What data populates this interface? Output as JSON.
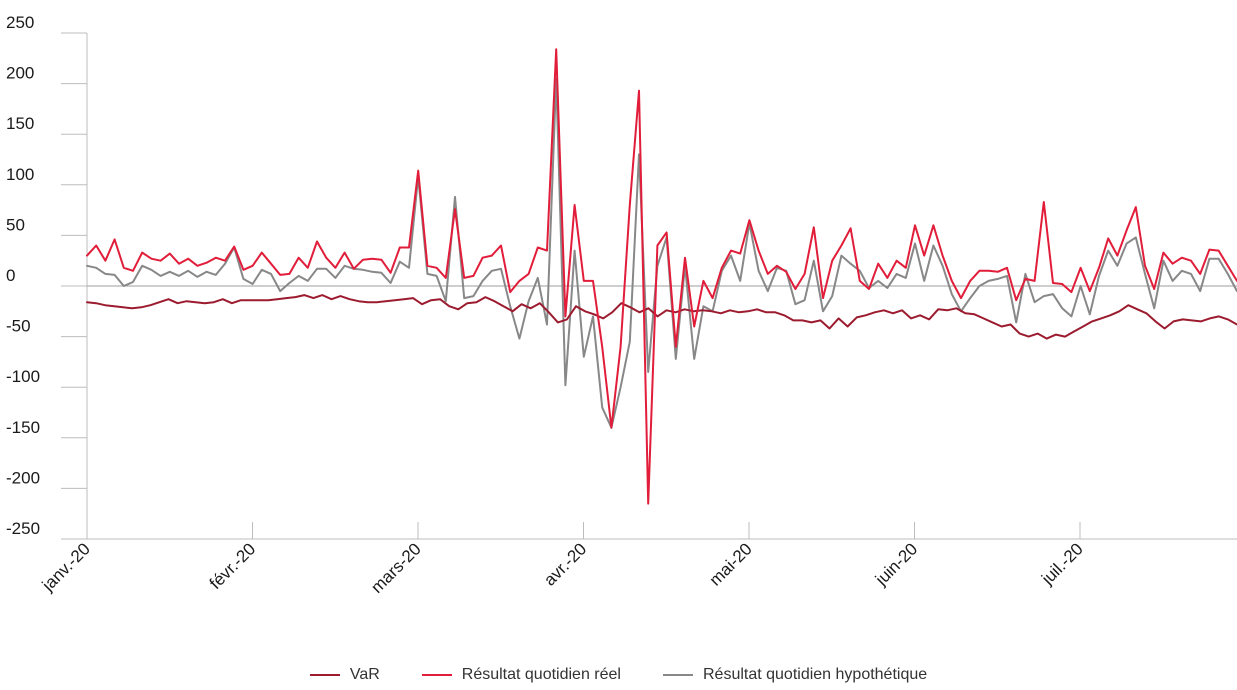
{
  "chart_data": {
    "type": "line",
    "title": "",
    "xlabel": "",
    "ylabel": "",
    "ylim": [
      -250,
      250
    ],
    "yticks": [
      250,
      200,
      150,
      100,
      50,
      0,
      -50,
      -100,
      -150,
      -200,
      -250
    ],
    "xticks": [
      "janv.-20",
      "févr.-20",
      "mars-20",
      "avr.-20",
      "mai-20",
      "juin-20",
      "juil.-20"
    ],
    "grid": false,
    "zero_line": true,
    "legend_position": "bottom-center",
    "series": [
      {
        "name": "VaR",
        "color": "#9c1b2f",
        "values": [
          -16,
          -17,
          -19,
          -20,
          -21,
          -22,
          -21,
          -19,
          -16,
          -13,
          -17,
          -15,
          -16,
          -17,
          -16,
          -13,
          -17,
          -14,
          -14,
          -14,
          -14,
          -13,
          -12,
          -11,
          -9,
          -12,
          -9,
          -13,
          -10,
          -13,
          -15,
          -16,
          -16,
          -15,
          -14,
          -13,
          -12,
          -18,
          -14,
          -13,
          -20,
          -23,
          -17,
          -16,
          -11,
          -15,
          -20,
          -25,
          -18,
          -22,
          -17,
          -26,
          -36,
          -33,
          -20,
          -25,
          -28,
          -32,
          -26,
          -17,
          -21,
          -26,
          -22,
          -30,
          -24,
          -26,
          -23,
          -25,
          -24,
          -25,
          -27,
          -24,
          -26,
          -25,
          -23,
          -26,
          -26,
          -29,
          -34,
          -34,
          -36,
          -34,
          -42,
          -32,
          -40,
          -31,
          -29,
          -26,
          -24,
          -27,
          -24,
          -32,
          -29,
          -33,
          -23,
          -24,
          -22,
          -27,
          -28,
          -32,
          -36,
          -40,
          -38,
          -47,
          -50,
          -47,
          -52,
          -48,
          -50,
          -45,
          -40,
          -35,
          -32,
          -29,
          -25,
          -19,
          -23,
          -27,
          -35,
          -42,
          -35,
          -33,
          -34,
          -35,
          -32,
          -30,
          -33,
          -38
        ]
      },
      {
        "name": "Résultat quotidien réel",
        "color": "#e11d3a",
        "values": [
          30,
          40,
          25,
          46,
          18,
          15,
          33,
          27,
          25,
          32,
          22,
          27,
          20,
          23,
          28,
          25,
          39,
          16,
          20,
          33,
          22,
          11,
          12,
          28,
          18,
          44,
          28,
          18,
          33,
          17,
          26,
          27,
          26,
          13,
          38,
          38,
          114,
          20,
          18,
          8,
          76,
          8,
          10,
          28,
          30,
          40,
          -6,
          5,
          12,
          38,
          35,
          234,
          -30,
          80,
          5,
          5,
          -60,
          -140,
          -60,
          80,
          193,
          -215,
          40,
          53,
          -60,
          28,
          -40,
          5,
          -12,
          18,
          35,
          32,
          65,
          35,
          12,
          20,
          14,
          -3,
          12,
          58,
          -12,
          25,
          40,
          57,
          5,
          -3,
          22,
          8,
          25,
          18,
          60,
          30,
          60,
          30,
          5,
          -12,
          5,
          15,
          15,
          14,
          18,
          -14,
          7,
          5,
          83,
          3,
          2,
          -6,
          18,
          -5,
          18,
          47,
          30,
          55,
          78,
          20,
          -3,
          33,
          22,
          28,
          25,
          12,
          36,
          35,
          20,
          5
        ]
      },
      {
        "name": "Résultat quotidien hypothétique",
        "color": "#888888",
        "values": [
          20,
          18,
          12,
          11,
          0,
          4,
          20,
          16,
          10,
          14,
          10,
          15,
          9,
          14,
          11,
          22,
          38,
          7,
          2,
          16,
          12,
          -5,
          3,
          10,
          5,
          17,
          17,
          8,
          20,
          17,
          16,
          14,
          13,
          3,
          24,
          18,
          108,
          12,
          10,
          -15,
          88,
          -12,
          -10,
          5,
          15,
          17,
          -20,
          -52,
          -15,
          8,
          -38,
          205,
          -98,
          35,
          -70,
          -30,
          -120,
          -140,
          -100,
          -55,
          130,
          -85,
          20,
          48,
          -72,
          20,
          -72,
          -20,
          -25,
          15,
          30,
          5,
          62,
          15,
          -5,
          18,
          15,
          -18,
          -14,
          25,
          -25,
          -10,
          30,
          22,
          15,
          -2,
          5,
          -2,
          12,
          8,
          42,
          5,
          40,
          20,
          -8,
          -25,
          -12,
          0,
          5,
          7,
          10,
          -36,
          12,
          -16,
          -10,
          -8,
          -22,
          -30,
          0,
          -28,
          10,
          35,
          20,
          42,
          48,
          12,
          -22,
          25,
          5,
          15,
          12,
          -5,
          27,
          27,
          12,
          -5
        ]
      }
    ]
  }
}
